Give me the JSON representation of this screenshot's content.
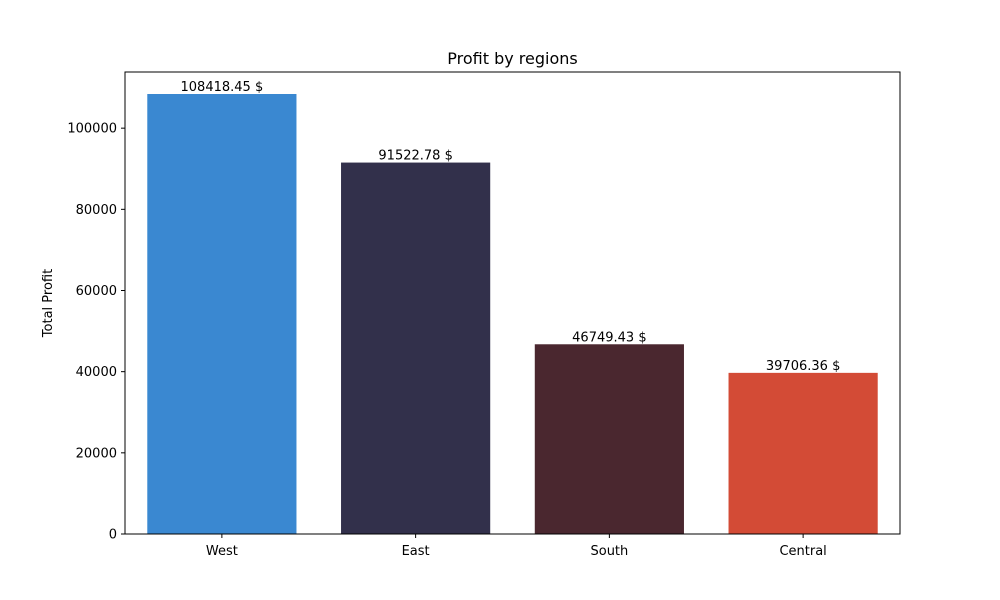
{
  "chart_data": {
    "type": "bar",
    "title": "Profit by regions",
    "xlabel": "",
    "ylabel": "Total Profit",
    "categories": [
      "West",
      "East",
      "South",
      "Central"
    ],
    "values": [
      108418.45,
      91522.78,
      46749.43,
      39706.36
    ],
    "data_labels": [
      "108418.45 $",
      "91522.78 $",
      "46749.43 $",
      "39706.36 $"
    ],
    "colors": [
      "#3a88d1",
      "#32304b",
      "#4a272f",
      "#d34b36"
    ],
    "ylim": [
      0,
      113839.37
    ],
    "yticks": [
      0,
      20000,
      40000,
      60000,
      80000,
      100000
    ],
    "ytick_labels": [
      "0",
      "20000",
      "40000",
      "60000",
      "80000",
      "100000"
    ],
    "grid": false,
    "legend": "none"
  }
}
